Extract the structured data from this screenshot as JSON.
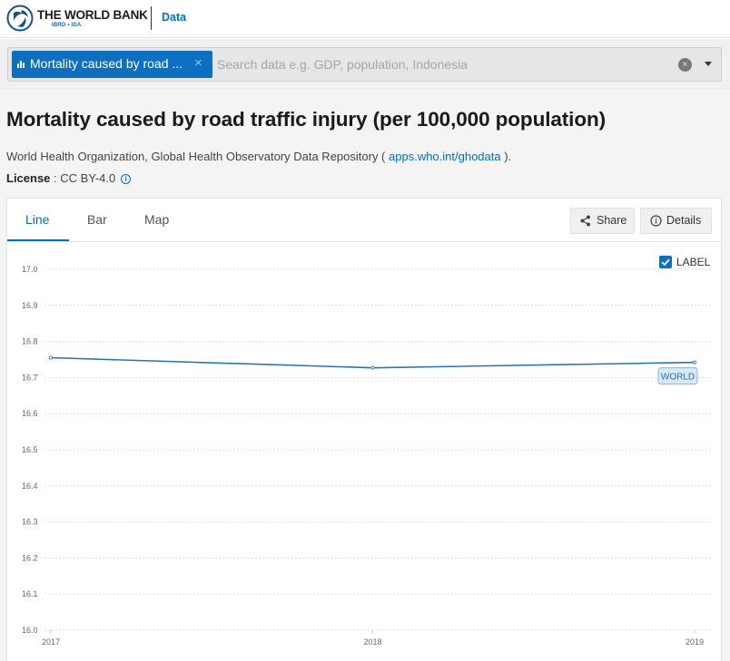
{
  "header": {
    "brand": "THE WORLD BANK",
    "brand_sub": "IBRD • IDA",
    "data_link": "Data"
  },
  "search": {
    "chip_label": "Mortality caused by road ...",
    "chip_close": "×",
    "placeholder": "Search data e.g. GDP, population, Indonesia",
    "clear": "×"
  },
  "indicator": {
    "title": "Mortality caused by road traffic injury (per 100,000 population)",
    "source_prefix": "World Health Organization, Global Health Observatory Data Repository ( ",
    "source_link": "apps.who.int/ghodata",
    "source_suffix": " ).",
    "license_label": "License",
    "license_value": " : CC BY-4.0",
    "info_icon": "i"
  },
  "tabs": [
    {
      "label": "Line",
      "active": true
    },
    {
      "label": "Bar",
      "active": false
    },
    {
      "label": "Map",
      "active": false
    }
  ],
  "actions": {
    "share": "Share",
    "details": "Details"
  },
  "label_toggle": {
    "text": "LABEL",
    "checked": true
  },
  "colors": {
    "accent": "#0071bc",
    "line": "#2a74b4"
  },
  "chart_data": {
    "type": "line",
    "x": [
      "2017",
      "2018",
      "2019"
    ],
    "series": [
      {
        "name": "WORLD",
        "values": [
          16.755,
          16.727,
          16.742
        ]
      }
    ],
    "ylim": [
      16.0,
      17.0
    ],
    "yticks": [
      "17.0",
      "16.9",
      "16.8",
      "16.7",
      "16.6",
      "16.5",
      "16.4",
      "16.3",
      "16.2",
      "16.1",
      "16.0"
    ],
    "grid": "horizontal dashed",
    "legend": "label at end of line"
  }
}
